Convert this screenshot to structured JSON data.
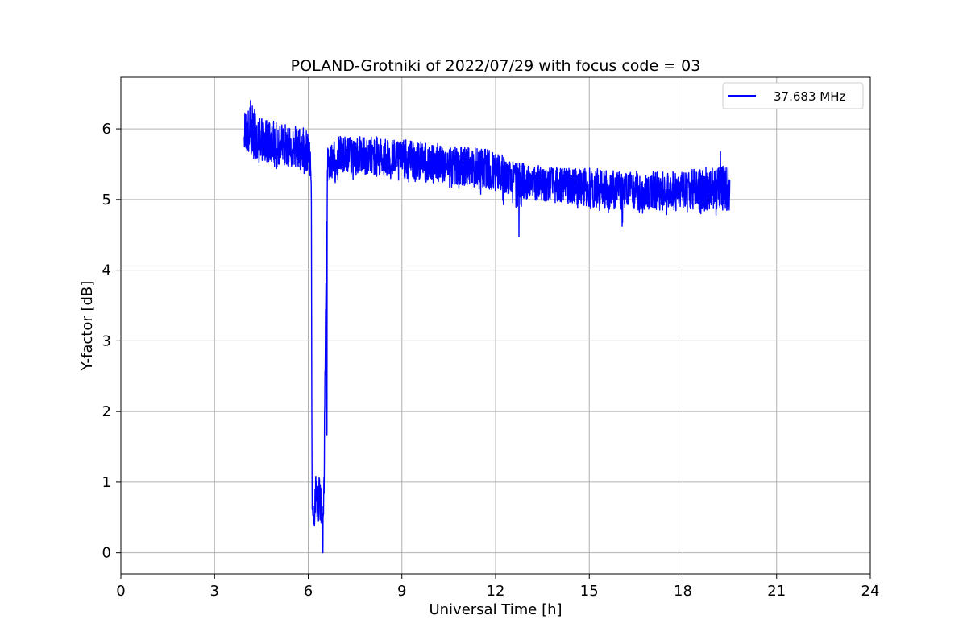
{
  "chart_data": {
    "type": "line",
    "title": "POLAND-Grotniki of 2022/07/29 with focus code = 03",
    "xlabel": "Universal Time [h]",
    "ylabel": "Y-factor [dB]",
    "xlim": [
      0,
      24
    ],
    "ylim": [
      -0.3,
      6.73
    ],
    "xticks": [
      0,
      3,
      6,
      9,
      12,
      15,
      18,
      21,
      24
    ],
    "yticks": [
      0,
      1,
      2,
      3,
      4,
      5,
      6
    ],
    "grid": true,
    "legend_position": "top-right",
    "series": [
      {
        "name": "37.683 MHz",
        "color": "#0000ff",
        "trend": [
          [
            3.95,
            5.95
          ],
          [
            4.2,
            5.85
          ],
          [
            4.5,
            5.8
          ],
          [
            5.0,
            5.75
          ],
          [
            5.5,
            5.7
          ],
          [
            6.0,
            5.65
          ],
          [
            6.1,
            5.4
          ],
          [
            6.12,
            0.7
          ],
          [
            6.2,
            0.6
          ],
          [
            6.3,
            0.7
          ],
          [
            6.4,
            0.65
          ],
          [
            6.5,
            0.5
          ],
          [
            6.55,
            3.0
          ],
          [
            6.62,
            5.5
          ],
          [
            7.0,
            5.6
          ],
          [
            8.0,
            5.6
          ],
          [
            9.0,
            5.55
          ],
          [
            10.0,
            5.5
          ],
          [
            11.0,
            5.45
          ],
          [
            12.0,
            5.4
          ],
          [
            12.5,
            5.3
          ],
          [
            13.0,
            5.25
          ],
          [
            14.0,
            5.2
          ],
          [
            15.0,
            5.15
          ],
          [
            16.0,
            5.1
          ],
          [
            17.0,
            5.1
          ],
          [
            18.0,
            5.1
          ],
          [
            19.0,
            5.1
          ],
          [
            19.5,
            5.1
          ]
        ],
        "upper_envelope": [
          [
            3.95,
            6.25
          ],
          [
            4.2,
            6.35
          ],
          [
            4.5,
            6.15
          ],
          [
            5.0,
            6.1
          ],
          [
            5.5,
            6.05
          ],
          [
            6.0,
            6.0
          ],
          [
            6.1,
            5.9
          ],
          [
            6.12,
            1.3
          ],
          [
            6.3,
            1.1
          ],
          [
            6.5,
            1.1
          ],
          [
            6.55,
            3.3
          ],
          [
            6.62,
            5.8
          ],
          [
            7.0,
            5.9
          ],
          [
            8.0,
            5.9
          ],
          [
            9.0,
            5.85
          ],
          [
            10.0,
            5.8
          ],
          [
            11.0,
            5.75
          ],
          [
            12.0,
            5.7
          ],
          [
            12.5,
            5.55
          ],
          [
            13.0,
            5.5
          ],
          [
            14.0,
            5.45
          ],
          [
            15.0,
            5.45
          ],
          [
            16.0,
            5.4
          ],
          [
            17.0,
            5.4
          ],
          [
            18.0,
            5.4
          ],
          [
            19.0,
            5.5
          ],
          [
            19.5,
            5.45
          ]
        ],
        "lower_envelope": [
          [
            3.95,
            5.75
          ],
          [
            4.2,
            5.5
          ],
          [
            4.5,
            5.45
          ],
          [
            5.0,
            5.4
          ],
          [
            5.5,
            5.4
          ],
          [
            6.0,
            5.35
          ],
          [
            6.1,
            5.2
          ],
          [
            6.12,
            0.5
          ],
          [
            6.2,
            0.3
          ],
          [
            6.3,
            0.4
          ],
          [
            6.45,
            0.0
          ],
          [
            6.5,
            0.0
          ],
          [
            6.55,
            1.7
          ],
          [
            6.62,
            5.2
          ],
          [
            7.0,
            5.25
          ],
          [
            8.0,
            5.3
          ],
          [
            9.0,
            5.25
          ],
          [
            10.0,
            5.2
          ],
          [
            11.0,
            5.1
          ],
          [
            12.0,
            5.05
          ],
          [
            12.75,
            4.5
          ],
          [
            13.0,
            4.95
          ],
          [
            14.0,
            4.85
          ],
          [
            15.0,
            4.85
          ],
          [
            16.0,
            4.65
          ],
          [
            17.0,
            4.8
          ],
          [
            18.0,
            4.75
          ],
          [
            19.0,
            4.75
          ],
          [
            19.5,
            4.85
          ]
        ],
        "notable_points": [
          [
            4.15,
            6.4
          ],
          [
            6.12,
            1.27
          ],
          [
            6.47,
            0.0
          ],
          [
            6.58,
            3.27
          ],
          [
            6.6,
            1.67
          ],
          [
            12.75,
            4.47
          ],
          [
            16.05,
            4.62
          ],
          [
            19.2,
            5.68
          ]
        ]
      }
    ]
  }
}
